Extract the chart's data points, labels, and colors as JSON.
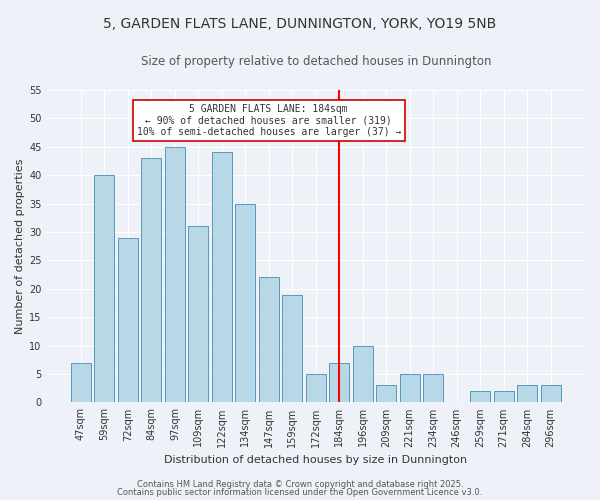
{
  "title": "5, GARDEN FLATS LANE, DUNNINGTON, YORK, YO19 5NB",
  "subtitle": "Size of property relative to detached houses in Dunnington",
  "xlabel": "Distribution of detached houses by size in Dunnington",
  "ylabel": "Number of detached properties",
  "bar_labels": [
    "47sqm",
    "59sqm",
    "72sqm",
    "84sqm",
    "97sqm",
    "109sqm",
    "122sqm",
    "134sqm",
    "147sqm",
    "159sqm",
    "172sqm",
    "184sqm",
    "196sqm",
    "209sqm",
    "221sqm",
    "234sqm",
    "246sqm",
    "259sqm",
    "271sqm",
    "284sqm",
    "296sqm"
  ],
  "bar_values": [
    7,
    40,
    29,
    43,
    45,
    31,
    44,
    35,
    22,
    19,
    5,
    7,
    10,
    3,
    5,
    5,
    0,
    2,
    2,
    3,
    3
  ],
  "bar_color": "#b8d8e8",
  "bar_edge_color": "#5599bb",
  "vline_x_index": 11,
  "vline_color": "red",
  "ylim": [
    0,
    55
  ],
  "yticks": [
    0,
    5,
    10,
    15,
    20,
    25,
    30,
    35,
    40,
    45,
    50,
    55
  ],
  "annotation_title": "5 GARDEN FLATS LANE: 184sqm",
  "annotation_line1": "← 90% of detached houses are smaller (319)",
  "annotation_line2": "10% of semi-detached houses are larger (37) →",
  "footnote1": "Contains HM Land Registry data © Crown copyright and database right 2025.",
  "footnote2": "Contains public sector information licensed under the Open Government Licence v3.0.",
  "background_color": "#eef2f8",
  "grid_color": "#ffffff",
  "title_fontsize": 10,
  "subtitle_fontsize": 8.5,
  "axis_label_fontsize": 8,
  "tick_fontsize": 7,
  "annotation_fontsize": 7,
  "footnote_fontsize": 6
}
